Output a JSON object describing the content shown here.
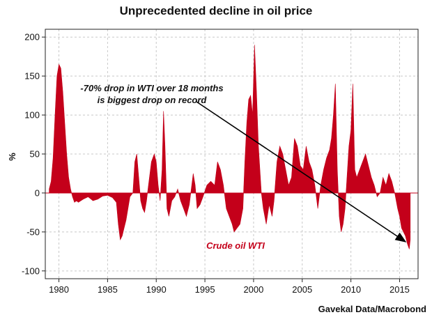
{
  "colors": {
    "series": "#c4001a",
    "grid": "#c8c8c8",
    "axis": "#222222",
    "arrow": "#000000"
  },
  "chart_data": {
    "type": "area",
    "title": "Unprecedented decline in oil price",
    "ylabel": "%",
    "xlabel": "",
    "source": "Gavekal Data/Macrobond",
    "xlim": [
      1978.6,
      2016.9
    ],
    "ylim": [
      -110,
      210
    ],
    "yticks": [
      200,
      150,
      100,
      50,
      0,
      -50,
      -100
    ],
    "xticks": [
      1980,
      1985,
      1990,
      1995,
      2000,
      2005,
      2010,
      2015
    ],
    "grid": true,
    "series": [
      {
        "name": "Crude oil WTI",
        "x": [
          1979.0,
          1979.2,
          1979.4,
          1979.6,
          1979.8,
          1980.0,
          1980.2,
          1980.4,
          1980.6,
          1980.8,
          1981.0,
          1981.2,
          1981.4,
          1981.6,
          1981.8,
          1982.0,
          1982.5,
          1983.0,
          1983.5,
          1984.0,
          1984.5,
          1985.0,
          1985.5,
          1985.9,
          1986.1,
          1986.3,
          1986.5,
          1986.7,
          1986.9,
          1987.1,
          1987.3,
          1987.6,
          1987.8,
          1988.0,
          1988.2,
          1988.4,
          1988.6,
          1988.8,
          1989.0,
          1989.2,
          1989.5,
          1989.8,
          1990.0,
          1990.2,
          1990.4,
          1990.6,
          1990.75,
          1990.9,
          1991.1,
          1991.3,
          1991.6,
          1991.9,
          1992.2,
          1992.5,
          1992.8,
          1993.1,
          1993.4,
          1993.6,
          1993.8,
          1994.0,
          1994.2,
          1994.5,
          1994.8,
          1995.2,
          1995.6,
          1996.0,
          1996.3,
          1996.6,
          1996.9,
          1997.2,
          1997.5,
          1997.8,
          1998.0,
          1998.3,
          1998.6,
          1998.9,
          1999.1,
          1999.3,
          1999.5,
          1999.7,
          1999.9,
          2000.1,
          2000.3,
          2000.5,
          2000.8,
          2001.0,
          2001.3,
          2001.6,
          2001.9,
          2002.1,
          2002.4,
          2002.7,
          2003.0,
          2003.3,
          2003.6,
          2003.9,
          2004.2,
          2004.5,
          2004.8,
          2005.1,
          2005.4,
          2005.7,
          2006.0,
          2006.3,
          2006.6,
          2006.9,
          2007.2,
          2007.5,
          2007.8,
          2008.0,
          2008.2,
          2008.4,
          2008.6,
          2008.8,
          2009.0,
          2009.2,
          2009.4,
          2009.6,
          2009.8,
          2010.0,
          2010.2,
          2010.4,
          2010.6,
          2010.9,
          2011.2,
          2011.5,
          2011.8,
          2012.1,
          2012.4,
          2012.7,
          2013.0,
          2013.3,
          2013.6,
          2013.9,
          2014.2,
          2014.5,
          2014.8,
          2015.0,
          2015.2,
          2015.4,
          2015.6,
          2015.8,
          2016.0,
          2016.1
        ],
        "values": [
          5,
          15,
          45,
          100,
          150,
          165,
          160,
          130,
          90,
          50,
          20,
          5,
          -5,
          -12,
          -10,
          -12,
          -8,
          -5,
          -10,
          -8,
          -4,
          -3,
          -6,
          -12,
          -40,
          -60,
          -55,
          -45,
          -35,
          -20,
          -5,
          0,
          40,
          50,
          20,
          -10,
          -20,
          -25,
          -10,
          10,
          40,
          50,
          40,
          10,
          -10,
          30,
          105,
          60,
          -20,
          -30,
          -10,
          -5,
          5,
          -10,
          -20,
          -30,
          -15,
          5,
          25,
          10,
          -20,
          -15,
          -5,
          10,
          15,
          10,
          40,
          30,
          10,
          -20,
          -30,
          -40,
          -50,
          -45,
          -40,
          -20,
          40,
          90,
          120,
          125,
          100,
          190,
          130,
          60,
          0,
          -20,
          -40,
          -15,
          -30,
          -10,
          40,
          60,
          50,
          30,
          10,
          20,
          70,
          60,
          35,
          30,
          60,
          40,
          30,
          10,
          -20,
          10,
          30,
          45,
          55,
          70,
          100,
          140,
          30,
          -30,
          -50,
          -40,
          -20,
          20,
          60,
          80,
          140,
          30,
          20,
          30,
          40,
          50,
          35,
          20,
          10,
          -5,
          0,
          20,
          10,
          25,
          15,
          0,
          -20,
          -30,
          -45,
          -50,
          -55,
          -65,
          -72,
          -60
        ]
      }
    ],
    "annotations": [
      {
        "text_line1": "-70% drop in WTI over 18 months",
        "text_line2": "is biggest drop on record"
      }
    ],
    "series_label": "Crude oil WTI"
  }
}
